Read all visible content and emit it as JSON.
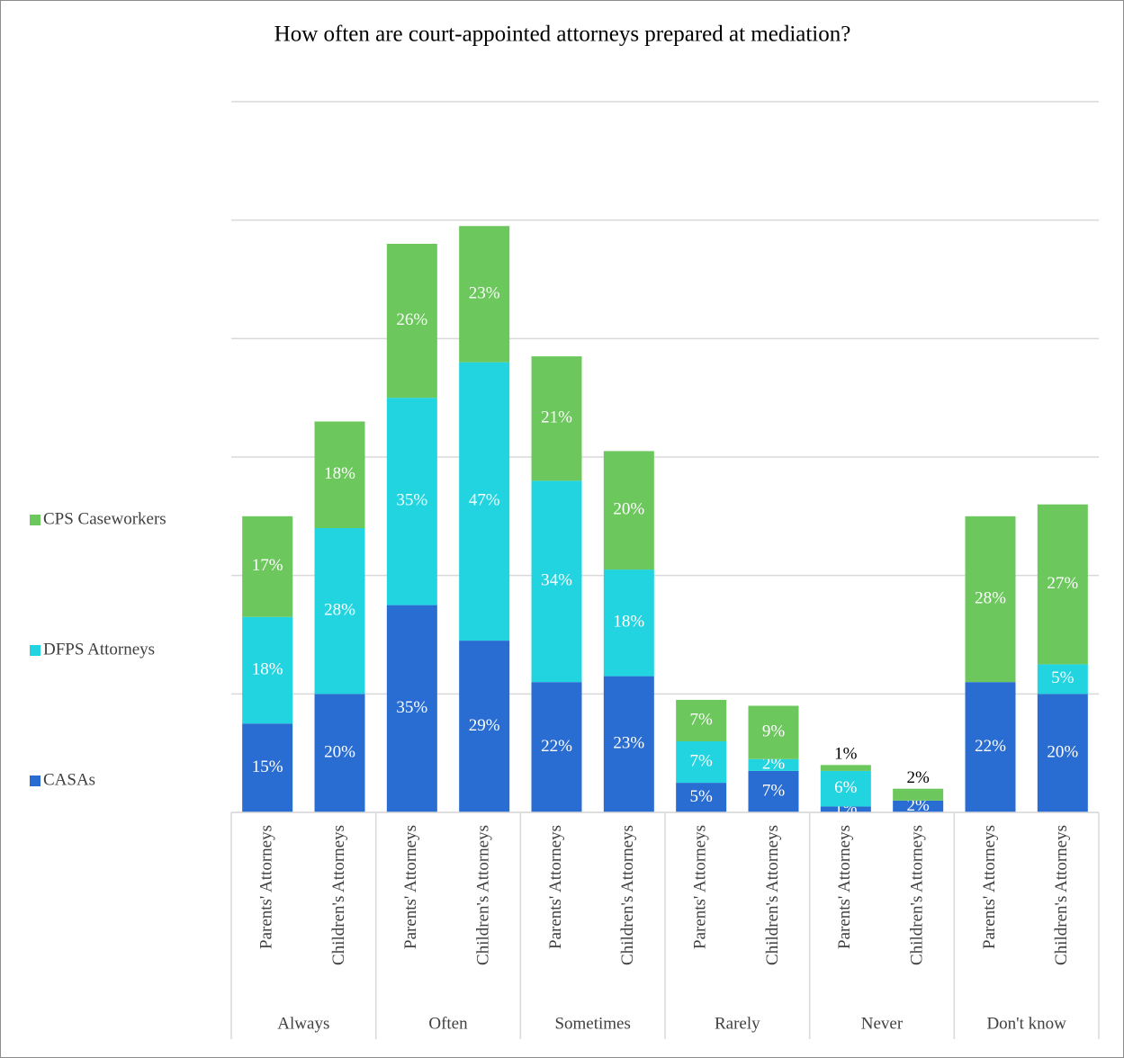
{
  "chart_data": {
    "type": "stacked-bar",
    "title": "How often are court-appointed attorneys prepared at mediation?",
    "groups": [
      "Always",
      "Often",
      "Sometimes",
      "Rarely",
      "Never",
      "Don't know"
    ],
    "categories": [
      "Parents' Attorneys",
      "Children's Attorneys",
      "Parents' Attorneys",
      "Children's Attorneys",
      "Parents' Attorneys",
      "Children's Attorneys",
      "Parents' Attorneys",
      "Children's Attorneys",
      "Parents' Attorneys",
      "Children's Attorneys",
      "Parents' Attorneys",
      "Children's Attorneys"
    ],
    "series": [
      {
        "name": "CASAs",
        "color": "#2a6dd2",
        "values": [
          15,
          20,
          35,
          29,
          22,
          23,
          5,
          7,
          1,
          2,
          22,
          20
        ],
        "value_labels": [
          "15%",
          "20%",
          "35%",
          "29%",
          "22%",
          "23%",
          "5%",
          "7%",
          "1%",
          "2%",
          "22%",
          "20%"
        ]
      },
      {
        "name": "DFPS Attorneys",
        "color": "#22d4df",
        "values": [
          18,
          28,
          35,
          47,
          34,
          18,
          7,
          2,
          6,
          null,
          null,
          5
        ],
        "value_labels": [
          "18%",
          "28%",
          "35%",
          "47%",
          "34%",
          "18%",
          "7%",
          "2%",
          "6%",
          null,
          null,
          "5%"
        ]
      },
      {
        "name": "CPS Caseworkers",
        "color": "#6cc75c",
        "values": [
          17,
          18,
          26,
          23,
          21,
          20,
          7,
          9,
          1,
          2,
          28,
          27
        ],
        "value_labels": [
          "17%",
          "18%",
          "26%",
          "23%",
          "21%",
          "20%",
          "7%",
          "9%",
          "1%",
          "2%",
          "28%",
          "27%"
        ]
      }
    ],
    "ylim": [
      0,
      120
    ],
    "yticks": [
      0,
      20,
      40,
      60,
      80,
      100,
      120
    ],
    "grid": true,
    "legend": "left"
  }
}
